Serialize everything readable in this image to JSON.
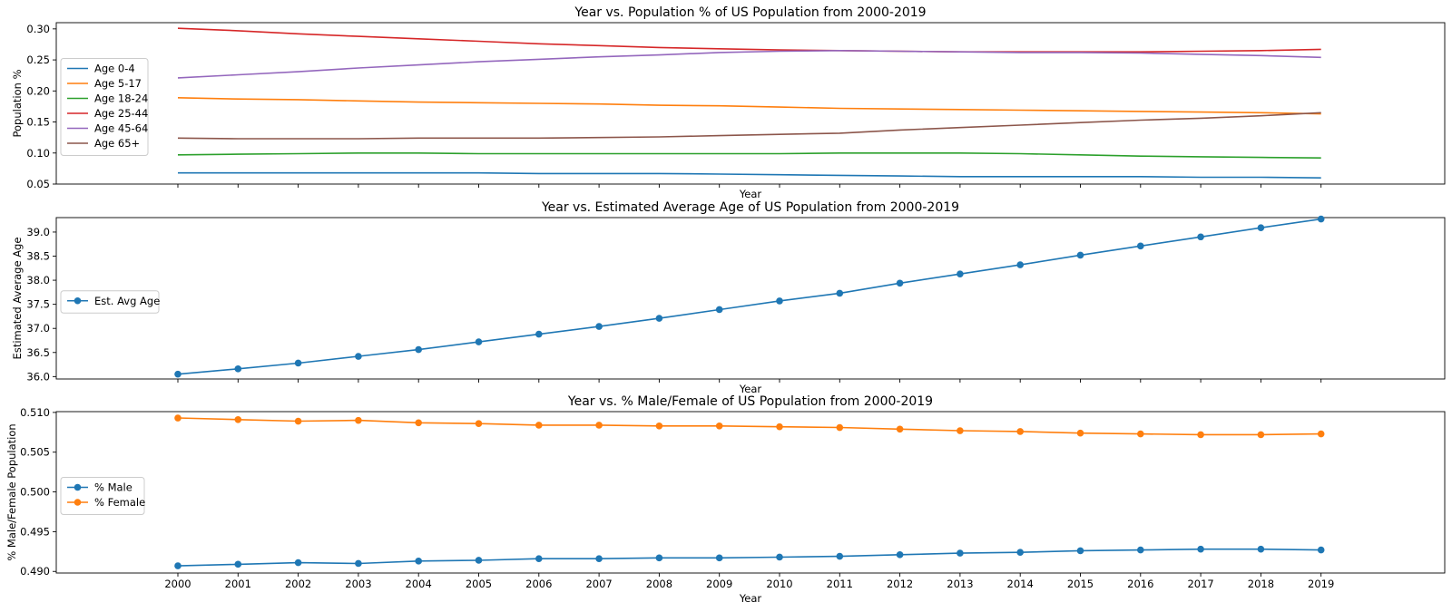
{
  "chart_data": [
    {
      "type": "line",
      "title": "Year vs. Population % of US Population from 2000-2019",
      "xlabel": "Year",
      "ylabel": "Population %",
      "ylim": [
        0.05,
        0.31
      ],
      "yticks": [
        "0.05",
        "0.10",
        "0.15",
        "0.20",
        "0.25",
        "0.30"
      ],
      "markers": false,
      "show_xtick_labels": false,
      "legend_position": "left",
      "x": [
        2000,
        2001,
        2002,
        2003,
        2004,
        2005,
        2006,
        2007,
        2008,
        2009,
        2010,
        2011,
        2012,
        2013,
        2014,
        2015,
        2016,
        2017,
        2018,
        2019
      ],
      "series": [
        {
          "name": "Age 0-4",
          "color": "#1f77b4",
          "values": [
            0.068,
            0.068,
            0.068,
            0.068,
            0.068,
            0.068,
            0.067,
            0.067,
            0.067,
            0.066,
            0.065,
            0.064,
            0.063,
            0.062,
            0.062,
            0.062,
            0.062,
            0.061,
            0.061,
            0.06
          ]
        },
        {
          "name": "Age 5-17",
          "color": "#ff7f0e",
          "values": [
            0.189,
            0.187,
            0.186,
            0.184,
            0.182,
            0.181,
            0.18,
            0.179,
            0.177,
            0.176,
            0.174,
            0.172,
            0.171,
            0.17,
            0.169,
            0.168,
            0.167,
            0.166,
            0.165,
            0.163
          ]
        },
        {
          "name": "Age 18-24",
          "color": "#2ca02c",
          "values": [
            0.097,
            0.098,
            0.099,
            0.1,
            0.1,
            0.099,
            0.099,
            0.099,
            0.099,
            0.099,
            0.099,
            0.1,
            0.1,
            0.1,
            0.099,
            0.097,
            0.095,
            0.094,
            0.093,
            0.092
          ]
        },
        {
          "name": "Age 25-44",
          "color": "#d62728",
          "values": [
            0.301,
            0.297,
            0.292,
            0.288,
            0.284,
            0.28,
            0.276,
            0.273,
            0.27,
            0.268,
            0.266,
            0.265,
            0.264,
            0.263,
            0.263,
            0.263,
            0.263,
            0.264,
            0.265,
            0.267
          ]
        },
        {
          "name": "Age 45-64",
          "color": "#9467bd",
          "values": [
            0.221,
            0.226,
            0.231,
            0.237,
            0.242,
            0.247,
            0.251,
            0.255,
            0.258,
            0.262,
            0.264,
            0.265,
            0.264,
            0.263,
            0.262,
            0.262,
            0.261,
            0.259,
            0.257,
            0.254
          ]
        },
        {
          "name": "Age 65+",
          "color": "#8c564b",
          "values": [
            0.124,
            0.123,
            0.123,
            0.123,
            0.124,
            0.124,
            0.124,
            0.125,
            0.126,
            0.128,
            0.13,
            0.132,
            0.137,
            0.141,
            0.145,
            0.149,
            0.153,
            0.156,
            0.16,
            0.165
          ]
        }
      ]
    },
    {
      "type": "line",
      "title": "Year vs. Estimated Average Age of US Population from 2000-2019",
      "xlabel": "Year",
      "ylabel": "Estimated Average Age",
      "ylim": [
        35.95,
        39.3
      ],
      "yticks": [
        "36.0",
        "36.5",
        "37.0",
        "37.5",
        "38.0",
        "38.5",
        "39.0"
      ],
      "markers": true,
      "show_xtick_labels": false,
      "legend_position": "left",
      "x": [
        2000,
        2001,
        2002,
        2003,
        2004,
        2005,
        2006,
        2007,
        2008,
        2009,
        2010,
        2011,
        2012,
        2013,
        2014,
        2015,
        2016,
        2017,
        2018,
        2019
      ],
      "series": [
        {
          "name": "Est. Avg Age",
          "color": "#1f77b4",
          "values": [
            36.05,
            36.16,
            36.28,
            36.42,
            36.56,
            36.72,
            36.88,
            37.04,
            37.21,
            37.39,
            37.57,
            37.73,
            37.94,
            38.13,
            38.32,
            38.52,
            38.71,
            38.9,
            39.09,
            39.27
          ]
        }
      ]
    },
    {
      "type": "line",
      "title": "Year vs. % Male/Female of US Population from 2000-2019",
      "xlabel": "Year",
      "ylabel": "% Male/Female Population",
      "ylim": [
        0.4898,
        0.5101
      ],
      "yticks": [
        "0.490",
        "0.495",
        "0.500",
        "0.505",
        "0.510"
      ],
      "markers": true,
      "show_xtick_labels": true,
      "legend_position": "left",
      "x": [
        2000,
        2001,
        2002,
        2003,
        2004,
        2005,
        2006,
        2007,
        2008,
        2009,
        2010,
        2011,
        2012,
        2013,
        2014,
        2015,
        2016,
        2017,
        2018,
        2019
      ],
      "series": [
        {
          "name": "% Male",
          "color": "#1f77b4",
          "values": [
            0.4907,
            0.4909,
            0.4911,
            0.491,
            0.4913,
            0.4914,
            0.4916,
            0.4916,
            0.4917,
            0.4917,
            0.4918,
            0.4919,
            0.4921,
            0.4923,
            0.4924,
            0.4926,
            0.4927,
            0.4928,
            0.4928,
            0.4927
          ]
        },
        {
          "name": "% Female",
          "color": "#ff7f0e",
          "values": [
            0.5093,
            0.5091,
            0.5089,
            0.509,
            0.5087,
            0.5086,
            0.5084,
            0.5084,
            0.5083,
            0.5083,
            0.5082,
            0.5081,
            0.5079,
            0.5077,
            0.5076,
            0.5074,
            0.5073,
            0.5072,
            0.5072,
            0.5073
          ]
        }
      ]
    }
  ]
}
